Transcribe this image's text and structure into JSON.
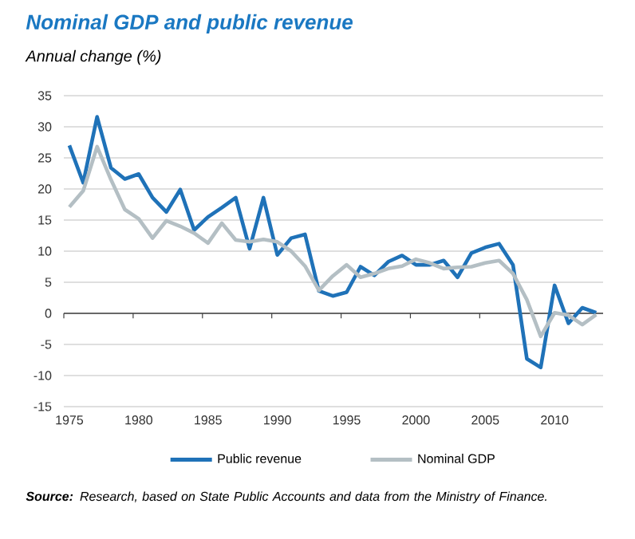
{
  "chart_data": {
    "type": "line",
    "title": "Nominal GDP and public revenue",
    "subtitle": "Annual change (%)",
    "x": [
      1975,
      1976,
      1977,
      1978,
      1979,
      1980,
      1981,
      1982,
      1983,
      1984,
      1985,
      1986,
      1987,
      1988,
      1989,
      1990,
      1991,
      1992,
      1993,
      1994,
      1995,
      1996,
      1997,
      1998,
      1999,
      2000,
      2001,
      2002,
      2003,
      2004,
      2005,
      2006,
      2007,
      2008,
      2009,
      2010,
      2011,
      2012,
      2013
    ],
    "series": [
      {
        "name": "Public revenue",
        "color": "#1f72b8",
        "values": [
          27,
          21,
          31.6,
          23.4,
          21.6,
          22.4,
          18.6,
          16.3,
          19.9,
          13.4,
          15.5,
          17,
          18.6,
          10.4,
          18.6,
          9.4,
          12.1,
          12.7,
          3.6,
          2.8,
          3.4,
          7.5,
          6.1,
          8.3,
          9.3,
          7.8,
          7.8,
          8.5,
          5.8,
          9.7,
          10.6,
          11.2,
          7.8,
          -7.3,
          -8.7,
          4.5,
          -1.6,
          0.9,
          0.1
        ]
      },
      {
        "name": "Nominal GDP",
        "color": "#b4bfc4",
        "values": [
          17.1,
          19.7,
          26.8,
          21.5,
          16.7,
          15.2,
          12.1,
          14.9,
          14,
          12.9,
          11.3,
          14.5,
          11.8,
          11.5,
          11.9,
          11.5,
          10,
          7.6,
          3.7,
          6,
          7.8,
          5.8,
          6.4,
          7.2,
          7.6,
          8.7,
          8.1,
          7.2,
          7.4,
          7.5,
          8.1,
          8.5,
          6.4,
          2.2,
          -3.7,
          0.1,
          -0.3,
          -1.8,
          -0.2
        ]
      }
    ],
    "xlim": [
      1974.6,
      2013.5
    ],
    "xticks": [
      1975,
      1980,
      1985,
      1990,
      1995,
      2000,
      2005,
      2010
    ],
    "ylim": [
      -15,
      35
    ],
    "yticks": [
      -15,
      -10,
      -5,
      0,
      5,
      10,
      15,
      20,
      25,
      30,
      35
    ],
    "grid": "y",
    "legend": "bottom",
    "marker": "none",
    "line_style": "solid",
    "annotations": [
      "**Source:** Research, based on State Public Accounts and data from the Ministry of Finance."
    ]
  }
}
